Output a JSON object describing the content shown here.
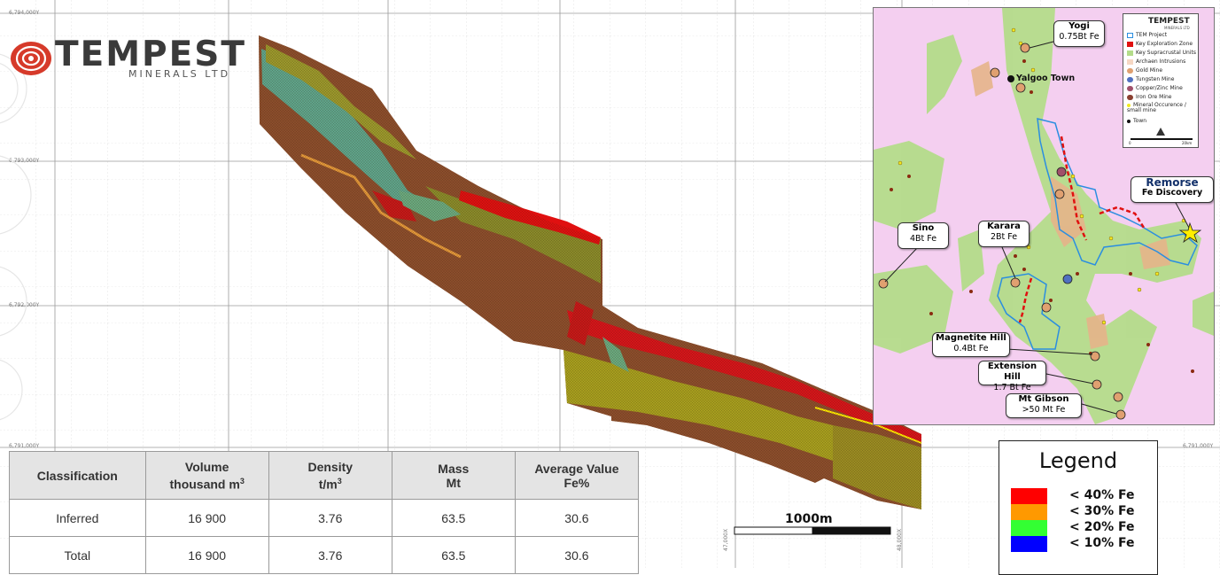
{
  "grid_labels": {
    "y_top": "6,794,000Y",
    "y_mid1": "6,793,000Y",
    "y_mid2": "6,792,000Y",
    "y_bottom_left": "6,791,000Y",
    "y_bottom_right": "6,791,000Y",
    "x_left": "47,000X",
    "x_right": "48,000X"
  },
  "logo": {
    "word": "TEMPEST",
    "sub": "MINERALS LTD"
  },
  "table": {
    "headers": [
      {
        "line1": "Classification",
        "line2": "",
        "sup": ""
      },
      {
        "line1": "Volume",
        "line2": "thousand m",
        "sup": "3"
      },
      {
        "line1": "Density",
        "line2": "t/m",
        "sup": "3"
      },
      {
        "line1": "Mass",
        "line2": "Mt",
        "sup": ""
      },
      {
        "line1": "Average Value",
        "line2": "Fe%",
        "sup": ""
      }
    ],
    "rows": [
      [
        "Inferred",
        "16 900",
        "3.76",
        "63.5",
        "30.6"
      ],
      [
        "Total",
        "16 900",
        "3.76",
        "63.5",
        "30.6"
      ]
    ]
  },
  "scale": {
    "label": "1000m"
  },
  "legend": {
    "title": "Legend",
    "items": [
      {
        "label": "< 40% Fe",
        "color": "#ff0000"
      },
      {
        "label": "< 30% Fe",
        "color": "#ff9900"
      },
      {
        "label": "< 20% Fe",
        "color": "#33ff33"
      },
      {
        "label": "< 10% Fe",
        "color": "#0000ff"
      }
    ]
  },
  "map": {
    "town": "Yalgoo Town",
    "callouts": {
      "yogi": {
        "name": "Yogi",
        "value": "0.75Bt Fe"
      },
      "remorse": {
        "name": "Remorse",
        "value": "Fe Discovery"
      },
      "sino": {
        "name": "Sino",
        "value": "4Bt Fe"
      },
      "karara": {
        "name": "Karara",
        "value": "2Bt Fe"
      },
      "magnetite": {
        "name": "Magnetite Hill",
        "value": "0.4Bt Fe"
      },
      "extension": {
        "name": "Extension Hill",
        "value": "1.7 Bt Fe"
      },
      "gibson": {
        "name": "Mt Gibson",
        "value": ">50 Mt Fe"
      }
    },
    "legend": {
      "brand": "TEMPEST",
      "brand_sub": "MINERALS LTD",
      "items": [
        {
          "label": "TEM Project"
        },
        {
          "label": "Key Exploration Zone"
        },
        {
          "label": "Key Supracrustal Units"
        },
        {
          "label": "Archaen Intrusions"
        },
        {
          "label": "Gold Mine"
        },
        {
          "label": "Tungsten Mine"
        },
        {
          "label": "Copper/Zinc Mine"
        },
        {
          "label": "Iron Ore Mine"
        },
        {
          "label": "Mineral Occurence / small mine"
        },
        {
          "label": "Town"
        }
      ],
      "scale_left": "0",
      "scale_right": "20km"
    }
  }
}
